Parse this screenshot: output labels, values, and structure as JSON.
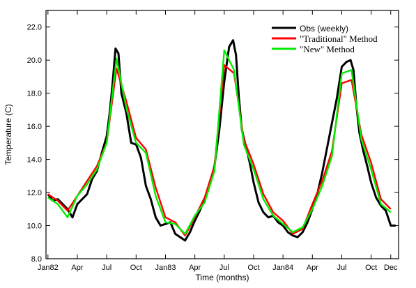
{
  "chart_data": {
    "type": "line",
    "title": "",
    "xlabel": "Time (months)",
    "ylabel": "Temperature (C)",
    "x_unit": "months since Jan 1982",
    "xlim": [
      -0.2,
      35.8
    ],
    "ylim": [
      8.0,
      23.0
    ],
    "y_ticks": [
      8.0,
      10.0,
      12.0,
      14.0,
      16.0,
      18.0,
      20.0,
      22.0
    ],
    "y_tick_labels": [
      "8.0",
      "10.0",
      "12.0",
      "14.0",
      "16.0",
      "18.0",
      "20.0",
      "22.0"
    ],
    "x_ticks": [
      0,
      3,
      6,
      9,
      12,
      15,
      18,
      21,
      24,
      27,
      30,
      33,
      35
    ],
    "x_tick_labels": [
      "Jan82",
      "Apr",
      "Jul",
      "Oct",
      "Jan83",
      "Apr",
      "Jul",
      "Oct",
      "Jan84",
      "Apr",
      "Jul",
      "Oct",
      "Dec"
    ],
    "grid": false,
    "legend_position": "top-right",
    "series": [
      {
        "name": "Obs (weekly)",
        "color": "#000000",
        "x": [
          0,
          0.5,
          1.0,
          1.5,
          2.0,
          2.5,
          3.0,
          3.5,
          4.0,
          4.5,
          5.0,
          5.5,
          6.0,
          6.3,
          6.6,
          6.9,
          7.2,
          7.5,
          8.0,
          8.5,
          9.0,
          9.5,
          10.0,
          10.5,
          11.0,
          11.5,
          12.0,
          12.5,
          13.0,
          13.5,
          14.0,
          14.5,
          15.0,
          15.5,
          16.0,
          16.5,
          17.0,
          17.5,
          18.0,
          18.5,
          18.9,
          19.2,
          19.5,
          19.8,
          20.2,
          20.6,
          21.0,
          21.5,
          22.0,
          22.5,
          23.0,
          23.5,
          24.0,
          24.5,
          25.0,
          25.5,
          26.0,
          26.5,
          27.0,
          27.5,
          28.0,
          28.5,
          29.0,
          29.5,
          30.0,
          30.5,
          30.9,
          31.2,
          31.5,
          31.8,
          32.2,
          32.6,
          33.0,
          33.5,
          34.0,
          34.5,
          35.0,
          35.5
        ],
        "values": [
          11.9,
          11.5,
          11.6,
          11.3,
          11.0,
          10.5,
          11.3,
          11.6,
          11.9,
          12.8,
          13.3,
          14.4,
          15.4,
          16.8,
          18.6,
          20.7,
          20.4,
          18.0,
          16.8,
          15.0,
          14.9,
          14.1,
          12.4,
          11.6,
          10.5,
          10.0,
          10.1,
          10.2,
          9.5,
          9.3,
          9.1,
          9.6,
          10.3,
          10.9,
          11.6,
          12.5,
          13.6,
          15.8,
          18.7,
          20.8,
          21.2,
          20.3,
          17.7,
          15.8,
          14.8,
          13.8,
          12.6,
          11.4,
          10.8,
          10.5,
          10.6,
          10.2,
          10.0,
          9.6,
          9.4,
          9.3,
          9.6,
          10.2,
          11.0,
          11.9,
          13.2,
          14.7,
          16.2,
          17.7,
          19.6,
          19.9,
          20.0,
          19.4,
          17.2,
          15.6,
          14.5,
          13.6,
          12.6,
          11.7,
          11.2,
          10.9,
          10.0,
          10.0
        ]
      },
      {
        "name": "\"Traditional\" Method",
        "color": "#ff0000",
        "x": [
          0,
          1,
          2,
          3,
          4,
          5,
          6,
          7,
          8,
          9,
          10,
          11,
          12,
          13,
          14,
          15,
          16,
          17,
          18,
          19,
          20,
          21,
          22,
          23,
          24,
          25,
          26,
          27,
          28,
          29,
          30,
          31,
          32,
          33,
          34,
          35
        ],
        "values": [
          11.9,
          11.5,
          10.9,
          11.8,
          12.7,
          13.6,
          15.0,
          19.5,
          17.5,
          15.3,
          14.6,
          12.3,
          10.5,
          10.2,
          9.4,
          10.5,
          11.7,
          13.6,
          19.7,
          19.2,
          15.2,
          13.7,
          11.9,
          10.8,
          10.3,
          9.5,
          9.8,
          11.3,
          12.7,
          14.5,
          18.6,
          18.8,
          15.5,
          13.8,
          11.6,
          11.0
        ]
      },
      {
        "name": "\"New\" Method",
        "color": "#00ee00",
        "x": [
          0,
          1,
          2,
          3,
          4,
          5,
          6,
          7,
          8,
          9,
          10,
          11,
          12,
          13,
          14,
          15,
          16,
          17,
          18,
          19,
          20,
          21,
          22,
          23,
          24,
          25,
          26,
          27,
          28,
          29,
          30,
          31,
          32,
          33,
          34,
          35
        ],
        "values": [
          11.7,
          11.3,
          10.5,
          11.8,
          12.5,
          13.4,
          15.0,
          20.1,
          17.1,
          15.0,
          14.4,
          11.8,
          10.2,
          10.1,
          9.5,
          10.6,
          11.4,
          13.3,
          20.6,
          19.4,
          14.9,
          13.4,
          11.6,
          10.6,
          10.1,
          9.6,
          9.9,
          11.0,
          12.4,
          14.2,
          19.2,
          19.4,
          15.2,
          13.4,
          11.3,
          10.8
        ]
      }
    ]
  }
}
